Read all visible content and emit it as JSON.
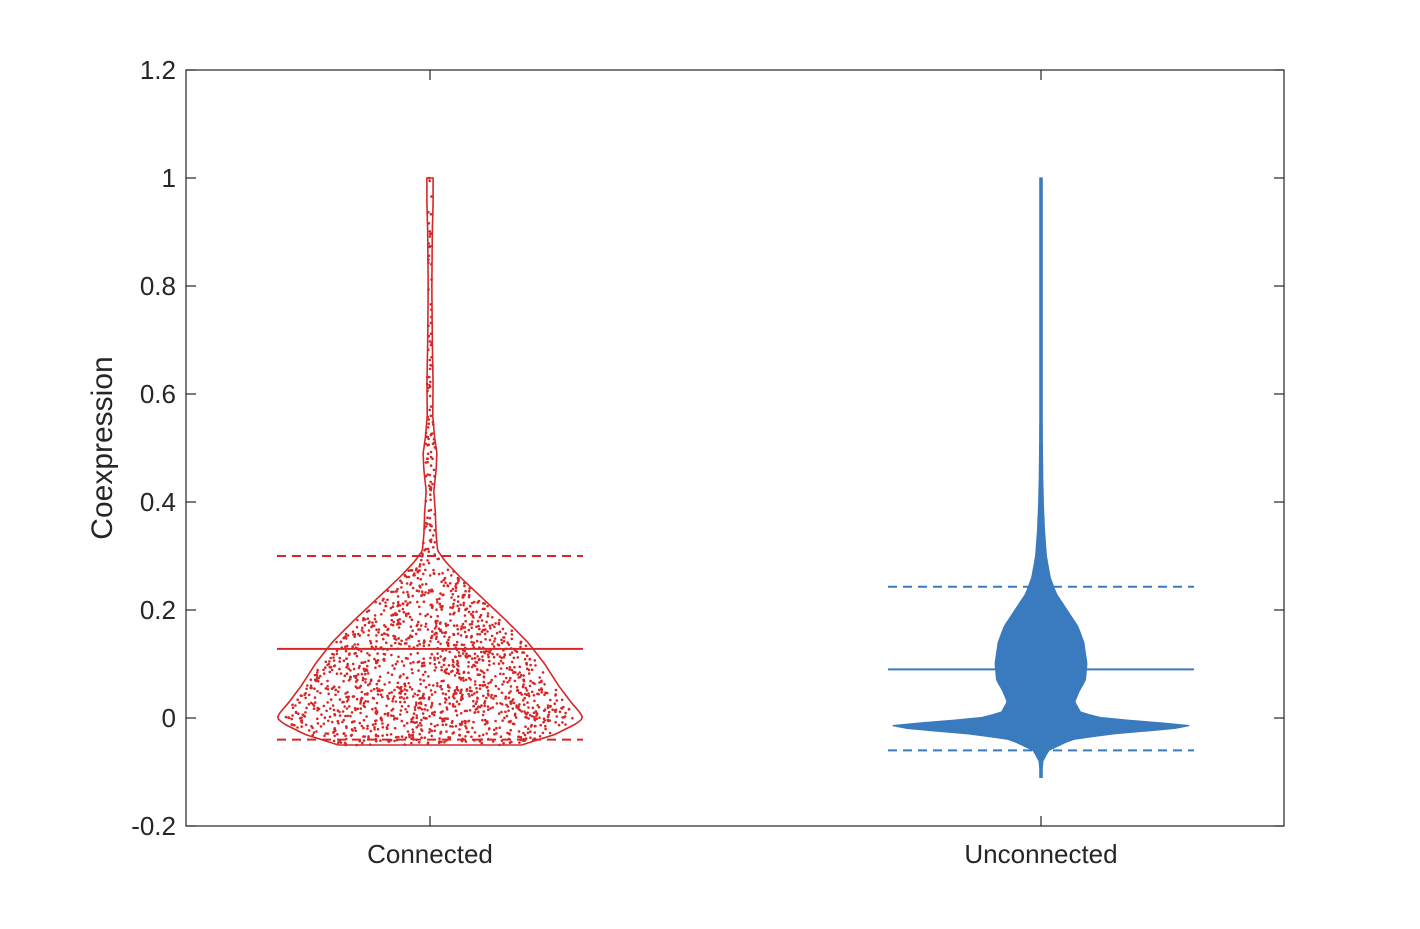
{
  "chart_data": {
    "type": "violin",
    "title": "",
    "xlabel": "",
    "ylabel": "Coexpression",
    "ylim": [
      -0.2,
      1.2
    ],
    "yticks": [
      "-0.2",
      "0",
      "0.2",
      "0.4",
      "0.6",
      "0.8",
      "1",
      "1.2"
    ],
    "categories": [
      "Connected",
      "Unconnected"
    ],
    "series": [
      {
        "name": "Connected",
        "color": "#d62728",
        "mean": 0.128,
        "lower_dashed": -0.04,
        "upper_dashed": 0.3,
        "min": -0.05,
        "max": 1.0,
        "show_points": true,
        "density_profile": [
          [
            -0.05,
            0.6
          ],
          [
            -0.03,
            0.82
          ],
          [
            -0.01,
            0.96
          ],
          [
            0.0,
            1.0
          ],
          [
            0.01,
            0.98
          ],
          [
            0.03,
            0.92
          ],
          [
            0.06,
            0.84
          ],
          [
            0.1,
            0.75
          ],
          [
            0.14,
            0.64
          ],
          [
            0.18,
            0.5
          ],
          [
            0.22,
            0.35
          ],
          [
            0.26,
            0.2
          ],
          [
            0.29,
            0.1
          ],
          [
            0.31,
            0.05
          ],
          [
            0.34,
            0.04
          ],
          [
            0.38,
            0.035
          ],
          [
            0.42,
            0.025
          ],
          [
            0.46,
            0.04
          ],
          [
            0.49,
            0.045
          ],
          [
            0.52,
            0.03
          ],
          [
            0.56,
            0.018
          ],
          [
            0.62,
            0.02
          ],
          [
            0.7,
            0.015
          ],
          [
            0.8,
            0.012
          ],
          [
            0.9,
            0.015
          ],
          [
            0.95,
            0.02
          ],
          [
            1.0,
            0.02
          ]
        ]
      },
      {
        "name": "Unconnected",
        "color": "#3a7bbf",
        "mean": 0.09,
        "lower_dashed": -0.06,
        "upper_dashed": 0.243,
        "min": -0.11,
        "max": 1.0,
        "show_points": false,
        "density_profile": [
          [
            -0.11,
            0.004
          ],
          [
            -0.08,
            0.012
          ],
          [
            -0.06,
            0.05
          ],
          [
            -0.04,
            0.2
          ],
          [
            -0.03,
            0.45
          ],
          [
            -0.02,
            0.85
          ],
          [
            -0.015,
            1.0
          ],
          [
            -0.01,
            0.82
          ],
          [
            0.0,
            0.4
          ],
          [
            0.01,
            0.26
          ],
          [
            0.03,
            0.22
          ],
          [
            0.05,
            0.25
          ],
          [
            0.07,
            0.29
          ],
          [
            0.1,
            0.3
          ],
          [
            0.14,
            0.28
          ],
          [
            0.17,
            0.24
          ],
          [
            0.2,
            0.17
          ],
          [
            0.23,
            0.1
          ],
          [
            0.26,
            0.06
          ],
          [
            0.3,
            0.035
          ],
          [
            0.35,
            0.022
          ],
          [
            0.4,
            0.015
          ],
          [
            0.45,
            0.011
          ],
          [
            0.5,
            0.009
          ],
          [
            0.6,
            0.007
          ],
          [
            0.7,
            0.005
          ],
          [
            0.8,
            0.004
          ],
          [
            0.9,
            0.004
          ],
          [
            1.0,
            0.006
          ]
        ]
      }
    ]
  }
}
